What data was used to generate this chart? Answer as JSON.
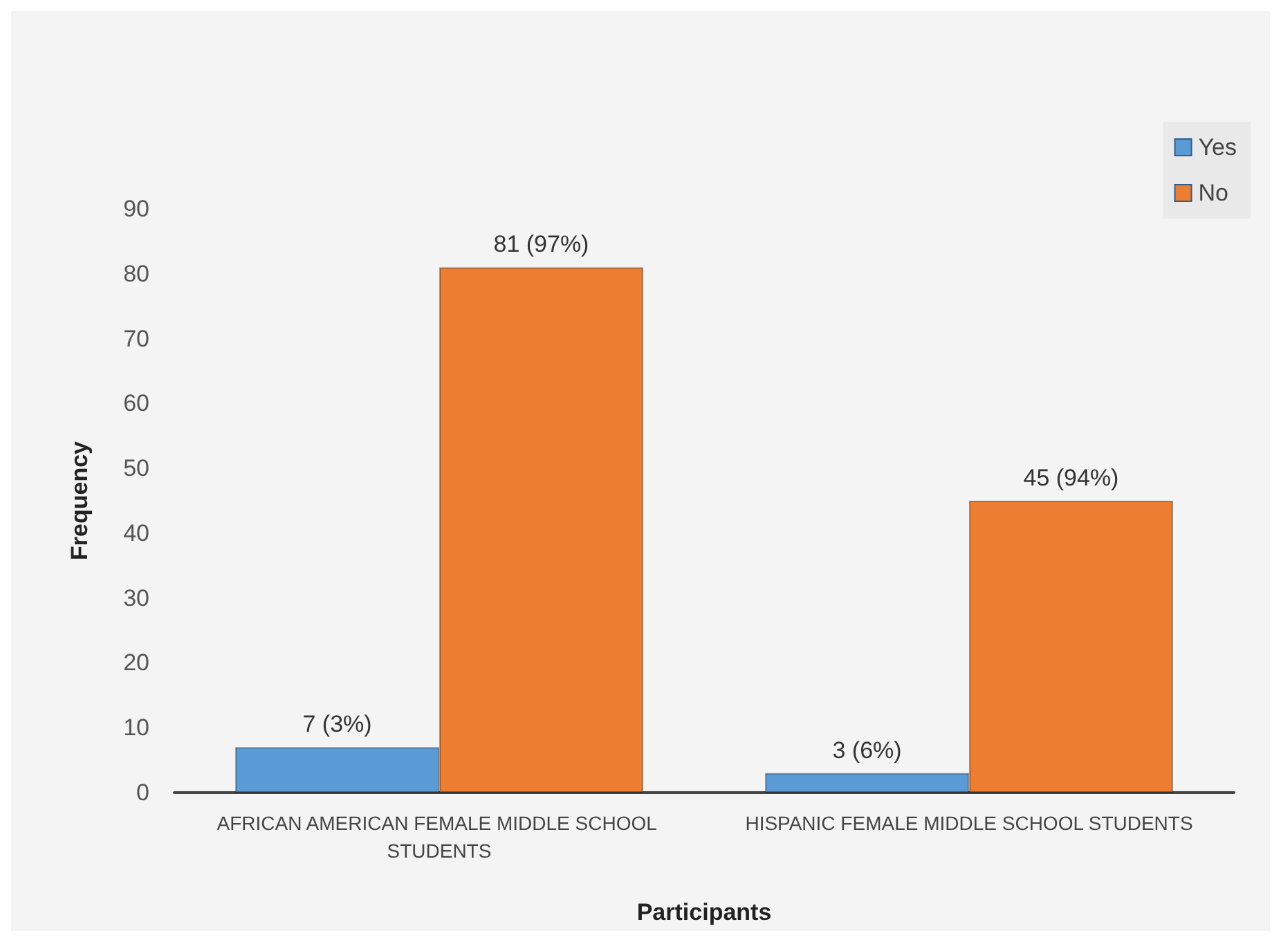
{
  "chart_data": {
    "type": "bar",
    "xlabel": "Participants",
    "ylabel": "Frequency",
    "categories": [
      "AFRICAN AMERICAN FEMALE MIDDLE SCHOOL STUDENTS",
      "HISPANIC FEMALE MIDDLE SCHOOL STUDENTS"
    ],
    "series": [
      {
        "name": "Yes",
        "color": "#5b9bd5",
        "values": [
          7,
          3
        ],
        "value_labels": [
          "7 (3%)",
          "3 (6%)"
        ]
      },
      {
        "name": "No",
        "color": "#ed7d31",
        "values": [
          81,
          45
        ],
        "value_labels": [
          "81 (97%)",
          "45 (94%)"
        ]
      }
    ],
    "ylim": [
      0,
      90
    ],
    "yticks": [
      0,
      10,
      20,
      30,
      40,
      50,
      60,
      70,
      80,
      90
    ],
    "grid": false,
    "legend": "top right"
  }
}
